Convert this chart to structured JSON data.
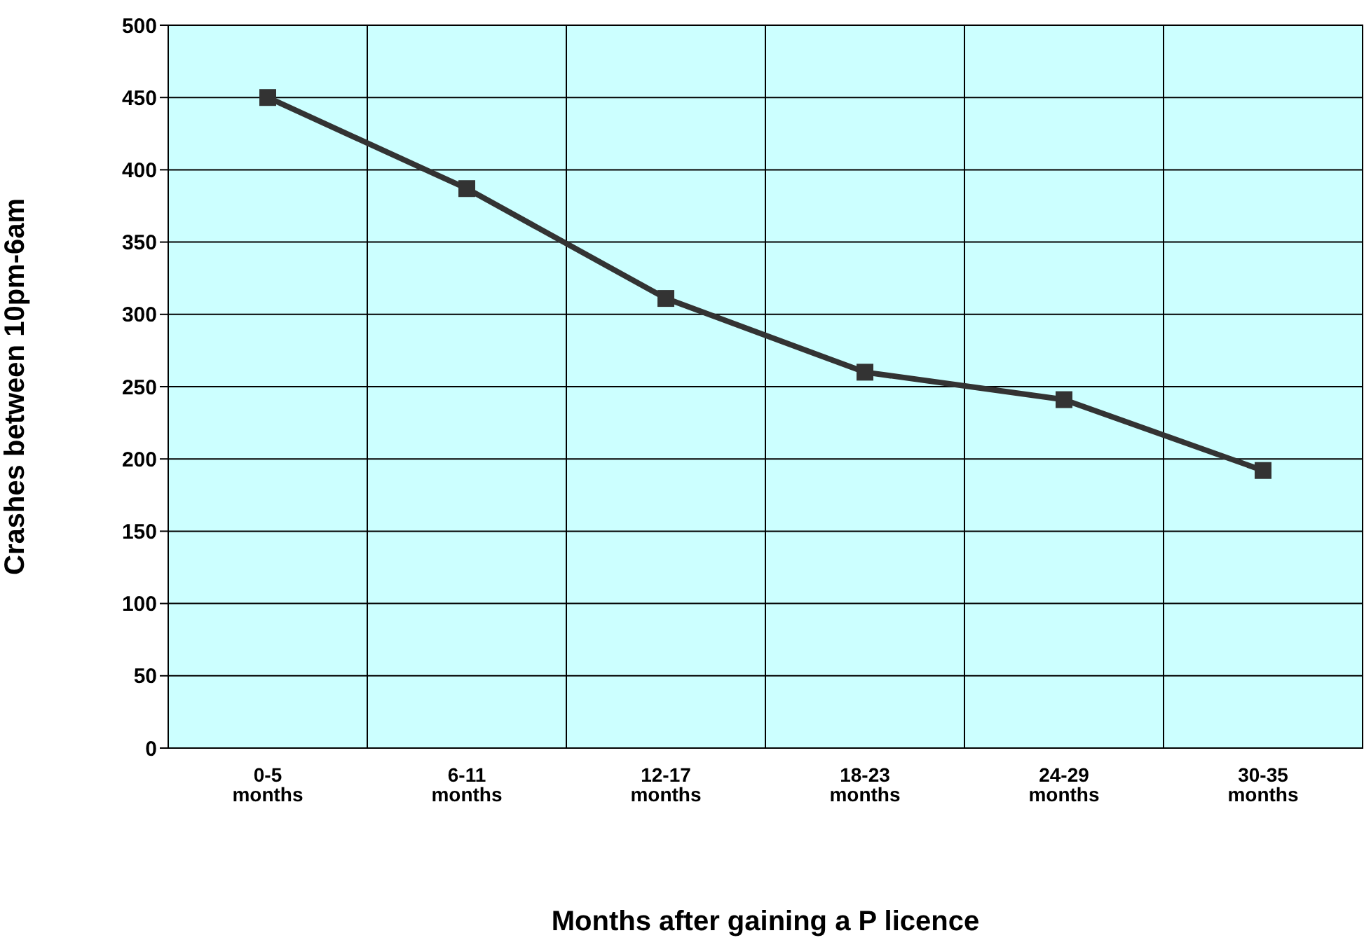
{
  "chart_data": {
    "type": "line",
    "xlabel": "Months after gaining a P licence",
    "ylabel": "Crashes between 10pm-6am",
    "categories": [
      "0-5 months",
      "6-11 months",
      "12-17 months",
      "18-23 months",
      "24-29 months",
      "30-35 months"
    ],
    "series": [
      {
        "color": "#333333",
        "values": [
          450,
          387,
          311,
          260,
          241,
          192
        ]
      }
    ],
    "ylim": [
      0,
      500
    ],
    "yticks": [
      0,
      50,
      100,
      150,
      200,
      250,
      300,
      350,
      400,
      450,
      500
    ],
    "grid": true,
    "legend": false,
    "marker": "square",
    "line_style": "solid"
  }
}
